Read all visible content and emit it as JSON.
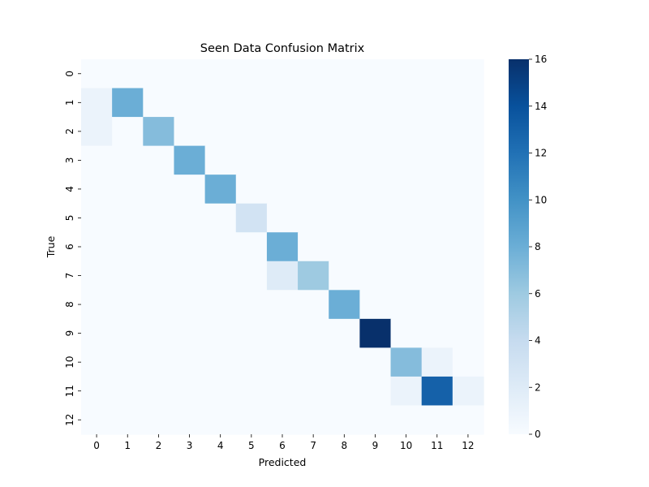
{
  "chart_data": {
    "type": "heatmap",
    "title": "Seen Data Confusion Matrix",
    "xlabel": "Predicted",
    "ylabel": "True",
    "x_categories": [
      "0",
      "1",
      "2",
      "3",
      "4",
      "5",
      "6",
      "7",
      "8",
      "9",
      "10",
      "11",
      "12"
    ],
    "y_categories": [
      "0",
      "1",
      "2",
      "3",
      "4",
      "5",
      "6",
      "7",
      "8",
      "9",
      "10",
      "11",
      "12"
    ],
    "values": [
      [
        0,
        0,
        0,
        0,
        0,
        0,
        0,
        0,
        0,
        0,
        0,
        0,
        0
      ],
      [
        1,
        8,
        0,
        0,
        0,
        0,
        0,
        0,
        0,
        0,
        0,
        0,
        0
      ],
      [
        1,
        0,
        7,
        0,
        0,
        0,
        0,
        0,
        0,
        0,
        0,
        0,
        0
      ],
      [
        0,
        0,
        0,
        8,
        0,
        0,
        0,
        0,
        0,
        0,
        0,
        0,
        0
      ],
      [
        0,
        0,
        0,
        0,
        8,
        0,
        0,
        0,
        0,
        0,
        0,
        0,
        0
      ],
      [
        0,
        0,
        0,
        0,
        0,
        3,
        0,
        0,
        0,
        0,
        0,
        0,
        0
      ],
      [
        0,
        0,
        0,
        0,
        0,
        0,
        8,
        0,
        0,
        0,
        0,
        0,
        0
      ],
      [
        0,
        0,
        0,
        0,
        0,
        0,
        2,
        6,
        0,
        0,
        0,
        0,
        0
      ],
      [
        0,
        0,
        0,
        0,
        0,
        0,
        0,
        0,
        8,
        0,
        0,
        0,
        0
      ],
      [
        0,
        0,
        0,
        0,
        0,
        0,
        0,
        0,
        0,
        16,
        0,
        0,
        0
      ],
      [
        0,
        0,
        0,
        0,
        0,
        0,
        0,
        0,
        0,
        0,
        7,
        1,
        0
      ],
      [
        0,
        0,
        0,
        0,
        0,
        0,
        0,
        0,
        0,
        0,
        1,
        13,
        1
      ],
      [
        0,
        0,
        0,
        0,
        0,
        0,
        0,
        0,
        0,
        0,
        0,
        0,
        0
      ]
    ],
    "colorbar": {
      "min": 0,
      "max": 16,
      "ticks": [
        0,
        2,
        4,
        6,
        8,
        10,
        12,
        14,
        16
      ],
      "colormap": "Blues",
      "low_color": "#f7fbff",
      "high_color": "#08306b"
    },
    "grid": false
  }
}
